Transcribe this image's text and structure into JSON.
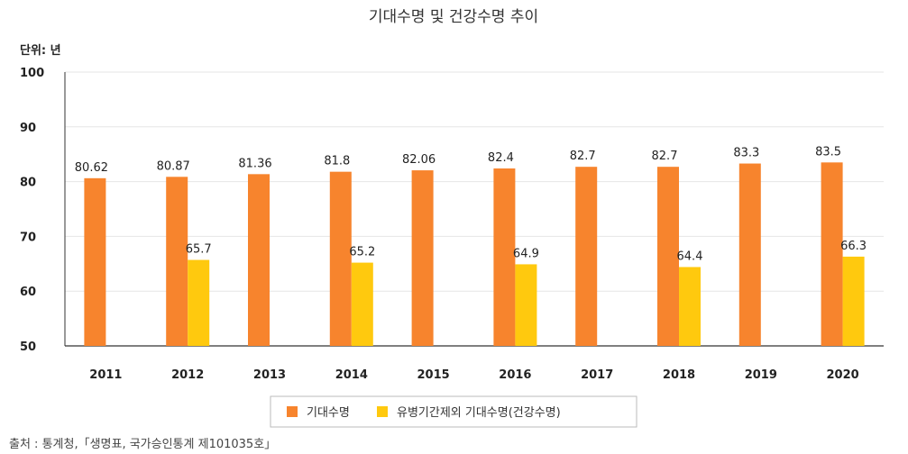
{
  "chart_data": {
    "type": "bar",
    "title": "기대수명 및 건강수명 추이",
    "unit_label": "단위: 년",
    "categories": [
      "2011",
      "2012",
      "2013",
      "2014",
      "2015",
      "2016",
      "2017",
      "2018",
      "2019",
      "2020"
    ],
    "series": [
      {
        "name": "기대수명",
        "color": "#f7842d",
        "values": [
          80.62,
          80.87,
          81.36,
          81.8,
          82.06,
          82.4,
          82.7,
          82.7,
          83.3,
          83.5
        ],
        "labels": [
          "80.62",
          "80.87",
          "81.36",
          "81.8",
          "82.06",
          "82.4",
          "82.7",
          "82.7",
          "83.3",
          "83.5"
        ]
      },
      {
        "name": "유병기간제외 기대수명(건강수명)",
        "color": "#ffc90e",
        "values": [
          null,
          65.7,
          null,
          65.2,
          null,
          64.9,
          null,
          64.4,
          null,
          66.3
        ],
        "labels": [
          null,
          "65.7",
          null,
          "65.2",
          null,
          "64.9",
          null,
          "64.4",
          null,
          "66.3"
        ]
      }
    ],
    "ylim": [
      50,
      100
    ],
    "yticks": [
      50,
      60,
      70,
      80,
      90,
      100
    ],
    "grid": true,
    "legend": "bottom"
  },
  "source": "출처 : 통계청,「생명표, 국가승인통계 제101035호」"
}
